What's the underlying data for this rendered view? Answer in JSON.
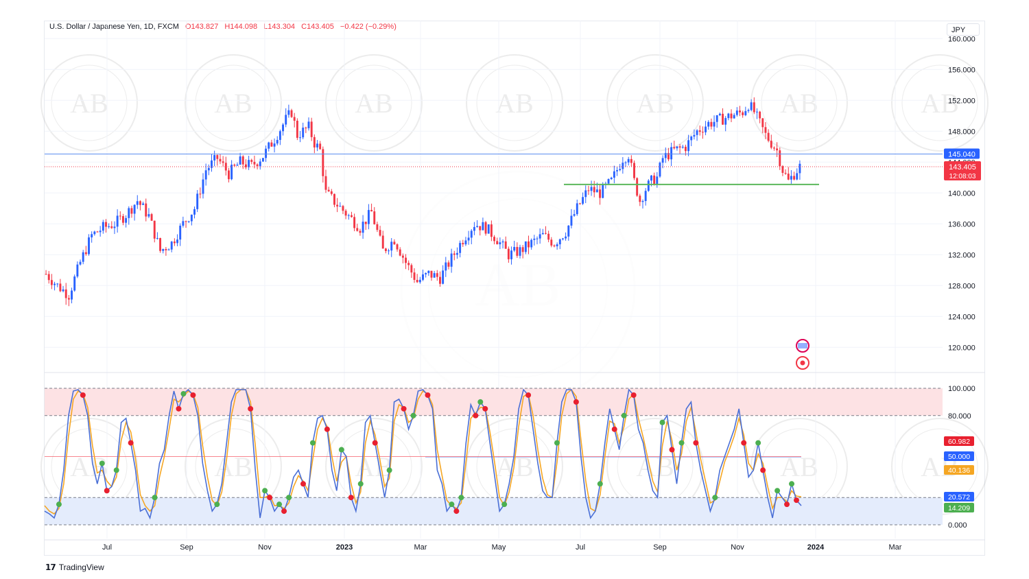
{
  "header": {
    "symbol": "U.S. Dollar / Japanese Yen, 1D, FXCM",
    "open": "O143.827",
    "high": "H144.098",
    "low": "L143.304",
    "close": "C143.405",
    "change": "−0.422 (−0.29%)"
  },
  "currency_label": "JPY",
  "brand": "TradingView",
  "colors": {
    "up": "#2962ff",
    "down": "#f23645",
    "resistance": "#5b8def",
    "support": "#5cb85c",
    "stoch_k": "#4a6fd6",
    "stoch_d": "#f5a623",
    "overbought_zone": "#fde2e4",
    "oversold_zone": "#e4ecfc"
  },
  "watermark_text": "AB",
  "chart_data": [
    {
      "type": "candlestick",
      "title": "",
      "x_ticks": [
        "Jul",
        "Sep",
        "Nov",
        "2023",
        "Mar",
        "May",
        "Jul",
        "Sep",
        "Nov",
        "2024",
        "Mar"
      ],
      "ylim": [
        117,
        161
      ],
      "y_ticks": [
        "160.000",
        "156.000",
        "152.000",
        "148.000",
        "144.000",
        "140.000",
        "136.000",
        "132.000",
        "128.000",
        "124.000",
        "120.000"
      ],
      "y_tick_values": [
        160,
        156,
        152,
        148,
        144,
        140,
        136,
        132,
        128,
        124,
        120
      ],
      "price_path": [
        [
          0,
          129.5
        ],
        [
          4,
          128.0
        ],
        [
          8,
          126.8
        ],
        [
          12,
          131.0
        ],
        [
          16,
          134.5
        ],
        [
          20,
          135.5
        ],
        [
          24,
          136.0
        ],
        [
          28,
          137.2
        ],
        [
          32,
          139.0
        ],
        [
          36,
          137.0
        ],
        [
          40,
          132.5
        ],
        [
          44,
          133.5
        ],
        [
          48,
          136.0
        ],
        [
          52,
          138.0
        ],
        [
          56,
          143.0
        ],
        [
          60,
          144.5
        ],
        [
          64,
          142.5
        ],
        [
          68,
          144.0
        ],
        [
          72,
          143.5
        ],
        [
          76,
          144.8
        ],
        [
          80,
          147.0
        ],
        [
          84,
          149.5
        ],
        [
          86,
          150.5
        ],
        [
          88,
          147.5
        ],
        [
          92,
          148.5
        ],
        [
          94,
          146.5
        ],
        [
          96,
          145.5
        ],
        [
          98,
          140.0
        ],
        [
          102,
          138.5
        ],
        [
          106,
          137.0
        ],
        [
          110,
          135.5
        ],
        [
          114,
          137.5
        ],
        [
          118,
          132.5
        ],
        [
          122,
          134.0
        ],
        [
          126,
          131.0
        ],
        [
          130,
          128.5
        ],
        [
          134,
          129.5
        ],
        [
          138,
          129.0
        ],
        [
          142,
          131.5
        ],
        [
          146,
          134.0
        ],
        [
          150,
          136.0
        ],
        [
          154,
          135.5
        ],
        [
          158,
          134.0
        ],
        [
          162,
          132.0
        ],
        [
          166,
          132.5
        ],
        [
          170,
          133.5
        ],
        [
          174,
          134.5
        ],
        [
          178,
          133.5
        ],
        [
          182,
          135.0
        ],
        [
          186,
          138.0
        ],
        [
          190,
          140.5
        ],
        [
          194,
          140.0
        ],
        [
          198,
          141.5
        ],
        [
          202,
          144.5
        ],
        [
          204,
          145.0
        ],
        [
          206,
          141.5
        ],
        [
          208,
          139.0
        ],
        [
          210,
          140.5
        ],
        [
          212,
          141.5
        ],
        [
          214,
          142.0
        ],
        [
          216,
          144.5
        ],
        [
          220,
          145.5
        ],
        [
          224,
          146.0
        ],
        [
          228,
          148.0
        ],
        [
          232,
          149.0
        ],
        [
          236,
          149.5
        ],
        [
          240,
          150.0
        ],
        [
          244,
          150.5
        ],
        [
          246,
          151.5
        ],
        [
          248,
          150.5
        ],
        [
          250,
          149.0
        ],
        [
          252,
          147.5
        ],
        [
          254,
          146.5
        ],
        [
          256,
          145.5
        ],
        [
          258,
          143.0
        ],
        [
          260,
          141.5
        ],
        [
          262,
          142.5
        ],
        [
          264,
          143.4
        ]
      ],
      "resistance_level": 145.04,
      "support_level": 141.1,
      "last_price": 143.405,
      "last_price_label": "143.405",
      "resistance_label": "145.040",
      "countdown": "12:08:03"
    },
    {
      "type": "line",
      "title": "",
      "ylim": [
        0,
        100
      ],
      "y_ticks": [
        "100.000",
        "80.000",
        "0.000"
      ],
      "y_tick_values": [
        100,
        80,
        0
      ],
      "overbought": 80,
      "oversold": 20,
      "midline": 50,
      "series": [
        {
          "name": "",
          "role": "k",
          "values": [
            10,
            8,
            5,
            15,
            40,
            80,
            98,
            99,
            95,
            80,
            45,
            30,
            45,
            25,
            28,
            40,
            75,
            78,
            60,
            40,
            10,
            12,
            5,
            20,
            45,
            55,
            80,
            98,
            85,
            96,
            99,
            95,
            80,
            45,
            25,
            10,
            15,
            30,
            60,
            90,
            99,
            99,
            99,
            85,
            40,
            5,
            25,
            20,
            10,
            15,
            10,
            20,
            35,
            40,
            30,
            20,
            60,
            78,
            80,
            70,
            40,
            25,
            55,
            50,
            20,
            10,
            30,
            75,
            80,
            60,
            40,
            20,
            40,
            90,
            92,
            85,
            70,
            80,
            98,
            99,
            95,
            85,
            40,
            30,
            10,
            15,
            10,
            20,
            60,
            88,
            80,
            90,
            85,
            60,
            35,
            10,
            15,
            30,
            50,
            85,
            99,
            95,
            70,
            45,
            25,
            20,
            20,
            60,
            90,
            99,
            99,
            90,
            50,
            20,
            5,
            10,
            30,
            60,
            85,
            70,
            55,
            80,
            99,
            95,
            70,
            60,
            40,
            25,
            20,
            75,
            80,
            55,
            30,
            60,
            85,
            90,
            60,
            40,
            25,
            10,
            20,
            40,
            50,
            60,
            70,
            85,
            60,
            35,
            40,
            60,
            40,
            20,
            5,
            25,
            20,
            15,
            30,
            18,
            14
          ]
        },
        {
          "name": "",
          "role": "d",
          "values": [
            14,
            10,
            8,
            12,
            30,
            65,
            92,
            98,
            96,
            86,
            58,
            38,
            40,
            32,
            28,
            35,
            62,
            75,
            68,
            48,
            22,
            14,
            10,
            14,
            35,
            50,
            70,
            92,
            90,
            94,
            98,
            96,
            86,
            58,
            35,
            18,
            14,
            24,
            48,
            80,
            96,
            99,
            99,
            90,
            58,
            20,
            20,
            22,
            14,
            14,
            12,
            16,
            28,
            36,
            32,
            25,
            48,
            70,
            78,
            72,
            50,
            32,
            46,
            50,
            30,
            16,
            24,
            60,
            76,
            66,
            48,
            28,
            34,
            76,
            88,
            86,
            75,
            78,
            92,
            98,
            96,
            88,
            55,
            36,
            18,
            14,
            12,
            16,
            46,
            78,
            82,
            86,
            86,
            68,
            45,
            20,
            14,
            24,
            42,
            72,
            94,
            96,
            80,
            55,
            34,
            22,
            20,
            46,
            80,
            96,
            99,
            94,
            62,
            32,
            12,
            10,
            22,
            50,
            76,
            74,
            60,
            72,
            92,
            96,
            78,
            64,
            48,
            32,
            24,
            58,
            76,
            62,
            40,
            52,
            76,
            86,
            68,
            48,
            32,
            16,
            18,
            32,
            46,
            55,
            65,
            78,
            66,
            45,
            40,
            52,
            45,
            28,
            12,
            20,
            20,
            17,
            25,
            21,
            20.6
          ]
        }
      ],
      "value_labels": [
        "60.982",
        "50.000",
        "40.136",
        "20.572",
        "14.209"
      ]
    }
  ]
}
